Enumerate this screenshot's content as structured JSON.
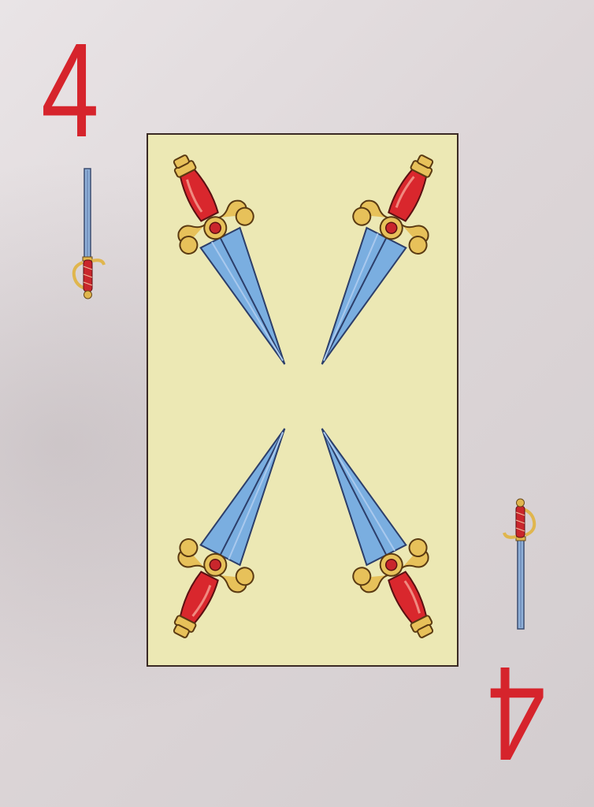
{
  "card": {
    "rank": "4",
    "suit_icon": "sword-icon",
    "rank_color": "#d6242c",
    "panel_color": "#ece8b4",
    "blade_color": "#7aaee0",
    "hilt_color": "#d9272d",
    "guard_color": "#e7c15a"
  }
}
